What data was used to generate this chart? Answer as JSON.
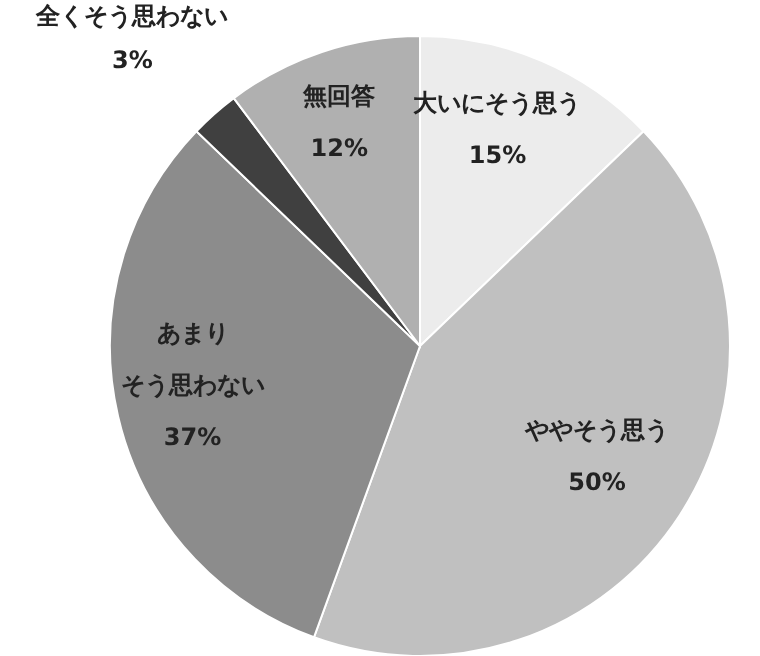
{
  "chart_data": {
    "type": "pie",
    "categories": [
      "大いにそう思う",
      "ややそう思う",
      "あまりそう思わない",
      "全くそう思わない",
      "無回答"
    ],
    "values": [
      15,
      50,
      37,
      3,
      12
    ],
    "value_labels": [
      "15%",
      "50%",
      "37%",
      "3%",
      "12%"
    ],
    "colors": [
      "#ececec",
      "#c0c0c0",
      "#8c8c8c",
      "#404040",
      "#b0b0b0"
    ]
  }
}
